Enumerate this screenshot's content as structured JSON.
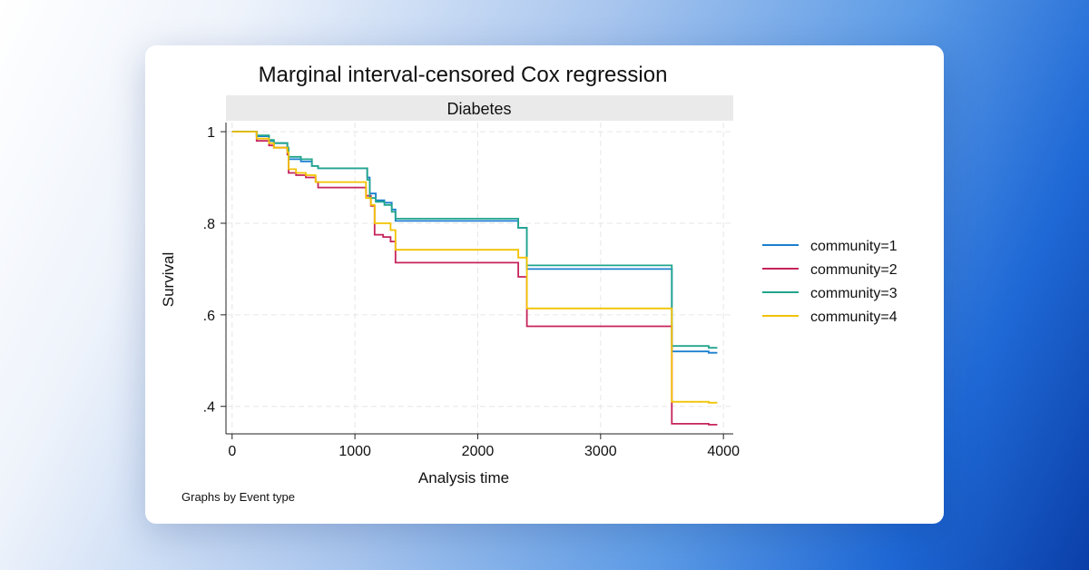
{
  "chart_data": {
    "type": "line",
    "subtype": "step",
    "title": "Marginal interval-censored Cox regression",
    "panel_label": "Diabetes",
    "xlabel": "Analysis time",
    "ylabel": "Survival",
    "note": "Graphs by Event type",
    "xlim": [
      -50,
      4080
    ],
    "ylim": [
      0.34,
      1.02
    ],
    "x_ticks": [
      0,
      1000,
      2000,
      3000,
      4000
    ],
    "x_tick_labels": [
      "0",
      "1000",
      "2000",
      "3000",
      "4000"
    ],
    "y_ticks": [
      0.4,
      0.6,
      0.8,
      1.0
    ],
    "y_tick_labels": [
      ".4",
      ".6",
      ".8",
      "1"
    ],
    "grid": true,
    "legend_position": "right",
    "series": [
      {
        "name": "community=1",
        "color": "#1a7fcf",
        "points": [
          [
            0,
            1.0
          ],
          [
            200,
            1.0
          ],
          [
            200,
            0.99
          ],
          [
            300,
            0.99
          ],
          [
            300,
            0.98
          ],
          [
            340,
            0.98
          ],
          [
            340,
            0.975
          ],
          [
            450,
            0.975
          ],
          [
            450,
            0.96
          ],
          [
            460,
            0.96
          ],
          [
            460,
            0.94
          ],
          [
            560,
            0.94
          ],
          [
            560,
            0.935
          ],
          [
            650,
            0.935
          ],
          [
            650,
            0.925
          ],
          [
            700,
            0.925
          ],
          [
            700,
            0.92
          ],
          [
            1100,
            0.92
          ],
          [
            1100,
            0.9
          ],
          [
            1120,
            0.9
          ],
          [
            1120,
            0.865
          ],
          [
            1170,
            0.865
          ],
          [
            1170,
            0.85
          ],
          [
            1240,
            0.85
          ],
          [
            1240,
            0.845
          ],
          [
            1300,
            0.845
          ],
          [
            1300,
            0.83
          ],
          [
            1330,
            0.83
          ],
          [
            1330,
            0.805
          ],
          [
            2330,
            0.805
          ],
          [
            2330,
            0.79
          ],
          [
            2400,
            0.79
          ],
          [
            2400,
            0.7
          ],
          [
            3580,
            0.7
          ],
          [
            3580,
            0.52
          ],
          [
            3880,
            0.52
          ],
          [
            3880,
            0.517
          ],
          [
            3950,
            0.517
          ]
        ]
      },
      {
        "name": "community=2",
        "color": "#c6235a",
        "points": [
          [
            0,
            1.0
          ],
          [
            200,
            1.0
          ],
          [
            200,
            0.98
          ],
          [
            300,
            0.98
          ],
          [
            300,
            0.97
          ],
          [
            340,
            0.97
          ],
          [
            340,
            0.965
          ],
          [
            450,
            0.965
          ],
          [
            450,
            0.95
          ],
          [
            460,
            0.95
          ],
          [
            460,
            0.91
          ],
          [
            520,
            0.91
          ],
          [
            520,
            0.905
          ],
          [
            600,
            0.905
          ],
          [
            600,
            0.9
          ],
          [
            680,
            0.9
          ],
          [
            680,
            0.89
          ],
          [
            700,
            0.89
          ],
          [
            700,
            0.878
          ],
          [
            1090,
            0.878
          ],
          [
            1090,
            0.86
          ],
          [
            1130,
            0.86
          ],
          [
            1130,
            0.838
          ],
          [
            1160,
            0.838
          ],
          [
            1160,
            0.775
          ],
          [
            1230,
            0.775
          ],
          [
            1230,
            0.77
          ],
          [
            1290,
            0.77
          ],
          [
            1290,
            0.76
          ],
          [
            1330,
            0.76
          ],
          [
            1330,
            0.714
          ],
          [
            2330,
            0.714
          ],
          [
            2330,
            0.683
          ],
          [
            2400,
            0.683
          ],
          [
            2400,
            0.575
          ],
          [
            3580,
            0.575
          ],
          [
            3580,
            0.362
          ],
          [
            3880,
            0.362
          ],
          [
            3880,
            0.36
          ],
          [
            3950,
            0.36
          ]
        ]
      },
      {
        "name": "community=3",
        "color": "#21a58c",
        "points": [
          [
            0,
            1.0
          ],
          [
            200,
            1.0
          ],
          [
            200,
            0.992
          ],
          [
            300,
            0.992
          ],
          [
            300,
            0.982
          ],
          [
            340,
            0.982
          ],
          [
            340,
            0.975
          ],
          [
            450,
            0.975
          ],
          [
            450,
            0.965
          ],
          [
            460,
            0.965
          ],
          [
            460,
            0.945
          ],
          [
            560,
            0.945
          ],
          [
            560,
            0.94
          ],
          [
            650,
            0.94
          ],
          [
            650,
            0.925
          ],
          [
            700,
            0.925
          ],
          [
            700,
            0.92
          ],
          [
            1100,
            0.92
          ],
          [
            1100,
            0.895
          ],
          [
            1120,
            0.895
          ],
          [
            1120,
            0.855
          ],
          [
            1170,
            0.855
          ],
          [
            1170,
            0.847
          ],
          [
            1240,
            0.847
          ],
          [
            1240,
            0.84
          ],
          [
            1300,
            0.84
          ],
          [
            1300,
            0.825
          ],
          [
            1330,
            0.825
          ],
          [
            1330,
            0.81
          ],
          [
            2330,
            0.81
          ],
          [
            2330,
            0.79
          ],
          [
            2380,
            0.79
          ],
          [
            2380,
            0.79
          ],
          [
            2400,
            0.79
          ],
          [
            2400,
            0.708
          ],
          [
            3580,
            0.708
          ],
          [
            3580,
            0.532
          ],
          [
            3880,
            0.532
          ],
          [
            3880,
            0.528
          ],
          [
            3950,
            0.528
          ]
        ]
      },
      {
        "name": "community=4",
        "color": "#f2c200",
        "points": [
          [
            0,
            1.0
          ],
          [
            200,
            1.0
          ],
          [
            200,
            0.985
          ],
          [
            300,
            0.985
          ],
          [
            300,
            0.975
          ],
          [
            340,
            0.975
          ],
          [
            340,
            0.965
          ],
          [
            450,
            0.965
          ],
          [
            450,
            0.955
          ],
          [
            460,
            0.955
          ],
          [
            460,
            0.918
          ],
          [
            520,
            0.918
          ],
          [
            520,
            0.91
          ],
          [
            600,
            0.91
          ],
          [
            600,
            0.905
          ],
          [
            680,
            0.905
          ],
          [
            680,
            0.89
          ],
          [
            1090,
            0.89
          ],
          [
            1090,
            0.855
          ],
          [
            1130,
            0.855
          ],
          [
            1130,
            0.84
          ],
          [
            1160,
            0.84
          ],
          [
            1160,
            0.8
          ],
          [
            1290,
            0.8
          ],
          [
            1290,
            0.785
          ],
          [
            1330,
            0.785
          ],
          [
            1330,
            0.742
          ],
          [
            2330,
            0.742
          ],
          [
            2330,
            0.725
          ],
          [
            2400,
            0.725
          ],
          [
            2400,
            0.614
          ],
          [
            3580,
            0.614
          ],
          [
            3580,
            0.41
          ],
          [
            3880,
            0.41
          ],
          [
            3880,
            0.408
          ],
          [
            3950,
            0.408
          ]
        ]
      }
    ]
  }
}
